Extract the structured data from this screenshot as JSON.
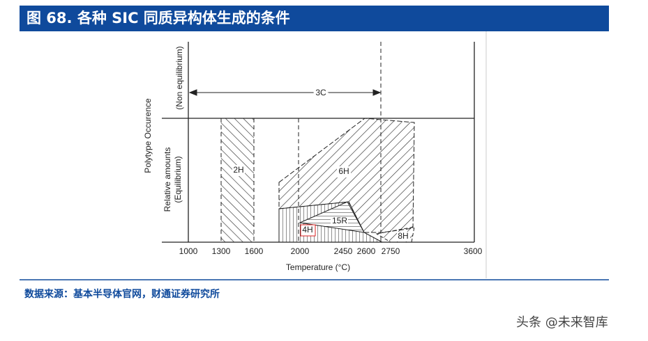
{
  "header": {
    "title": "图 68. 各种 SIC 同质异构体生成的条件"
  },
  "figure": {
    "y_label": "Polytype Occurence",
    "upper_label": "(Non equilibrium)",
    "lower_label_1": "Relative amounts",
    "lower_label_2": "(Equilibrium)",
    "x_label": "Temperature (°C)",
    "x_ticks": [
      "1000",
      "1300",
      "1600",
      "2000",
      "2450",
      "2600",
      "2750",
      "3600"
    ],
    "regions": [
      "3C",
      "2H",
      "6H",
      "15R",
      "4H",
      "8H"
    ]
  },
  "footer": {
    "source": "数据来源：基本半导体官网，财通证券研究所"
  },
  "watermark": "头条 @未来智库"
}
